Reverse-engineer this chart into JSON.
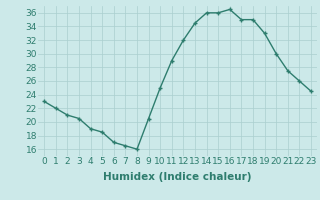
{
  "x": [
    0,
    1,
    2,
    3,
    4,
    5,
    6,
    7,
    8,
    9,
    10,
    11,
    12,
    13,
    14,
    15,
    16,
    17,
    18,
    19,
    20,
    21,
    22,
    23
  ],
  "y": [
    23,
    22,
    21,
    20.5,
    19,
    18.5,
    17,
    16.5,
    16,
    20.5,
    25,
    29,
    32,
    34.5,
    36,
    36,
    36.5,
    35,
    35,
    33,
    30,
    27.5,
    26,
    24.5
  ],
  "line_color": "#2e7d6e",
  "marker": "+",
  "bg_color": "#cce9e9",
  "grid_color": "#aacfcf",
  "xlabel": "Humidex (Indice chaleur)",
  "xlim": [
    -0.5,
    23.5
  ],
  "ylim": [
    15,
    37
  ],
  "yticks": [
    16,
    18,
    20,
    22,
    24,
    26,
    28,
    30,
    32,
    34,
    36
  ],
  "xticks": [
    0,
    1,
    2,
    3,
    4,
    5,
    6,
    7,
    8,
    9,
    10,
    11,
    12,
    13,
    14,
    15,
    16,
    17,
    18,
    19,
    20,
    21,
    22,
    23
  ],
  "tick_label_size": 6.5,
  "xlabel_size": 7.5,
  "line_width": 1.0,
  "marker_size": 3.5
}
